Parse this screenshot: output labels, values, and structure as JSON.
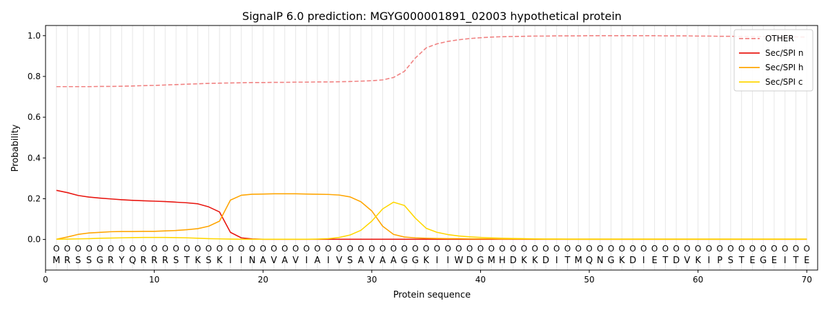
{
  "chart_data": {
    "type": "line",
    "title": "SignalP 6.0 prediction: MGYG000001891_02003 hypothetical protein",
    "xlabel": "Protein sequence",
    "ylabel": "Probability",
    "xlim": [
      0,
      71
    ],
    "ylim": [
      -0.15,
      1.05
    ],
    "x_ticks": [
      0,
      10,
      20,
      30,
      40,
      50,
      60,
      70
    ],
    "y_ticks": [
      0.0,
      0.2,
      0.4,
      0.6,
      0.8,
      1.0
    ],
    "y_tick_labels": [
      "0.0",
      "0.2",
      "0.4",
      "0.6",
      "0.8",
      "1.0"
    ],
    "grid": "vertical at each residue",
    "legend_position": "top-right",
    "sequence": [
      "M",
      "R",
      "S",
      "S",
      "G",
      "R",
      "Y",
      "Q",
      "R",
      "R",
      "R",
      "S",
      "T",
      "K",
      "S",
      "K",
      "I",
      "I",
      "N",
      "A",
      "V",
      "A",
      "V",
      "I",
      "A",
      "I",
      "V",
      "S",
      "A",
      "V",
      "A",
      "A",
      "G",
      "G",
      "K",
      "I",
      "I",
      "W",
      "D",
      "G",
      "M",
      "H",
      "D",
      "K",
      "K",
      "D",
      "I",
      "T",
      "M",
      "Q",
      "N",
      "G",
      "K",
      "D",
      "I",
      "E",
      "T",
      "D",
      "V",
      "K",
      "I",
      "P",
      "S",
      "T",
      "E",
      "G",
      "E",
      "I",
      "T",
      "E"
    ],
    "region_labels": [
      "O",
      "O",
      "O",
      "O",
      "O",
      "O",
      "O",
      "O",
      "O",
      "O",
      "O",
      "O",
      "O",
      "O",
      "O",
      "O",
      "O",
      "O",
      "O",
      "O",
      "O",
      "O",
      "O",
      "O",
      "O",
      "O",
      "O",
      "O",
      "O",
      "O",
      "O",
      "O",
      "O",
      "O",
      "O",
      "O",
      "O",
      "O",
      "O",
      "O",
      "O",
      "O",
      "O",
      "O",
      "O",
      "O",
      "O",
      "O",
      "O",
      "O",
      "O",
      "O",
      "O",
      "O",
      "O",
      "O",
      "O",
      "O",
      "O",
      "O",
      "O",
      "O",
      "O",
      "O",
      "O",
      "O",
      "O",
      "O",
      "O",
      "O"
    ],
    "series": [
      {
        "name": "OTHER",
        "color": "#f08080",
        "dashed": true,
        "values": [
          0.75,
          0.75,
          0.75,
          0.75,
          0.751,
          0.751,
          0.752,
          0.753,
          0.755,
          0.756,
          0.758,
          0.76,
          0.762,
          0.764,
          0.766,
          0.767,
          0.768,
          0.769,
          0.77,
          0.77,
          0.771,
          0.771,
          0.772,
          0.772,
          0.773,
          0.773,
          0.774,
          0.775,
          0.777,
          0.779,
          0.783,
          0.795,
          0.825,
          0.89,
          0.94,
          0.96,
          0.972,
          0.98,
          0.986,
          0.99,
          0.993,
          0.995,
          0.996,
          0.997,
          0.998,
          0.998,
          0.999,
          0.999,
          0.999,
          1.0,
          1.0,
          1.0,
          1.0,
          1.0,
          1.0,
          1.0,
          0.999,
          0.999,
          0.999,
          0.998,
          0.998,
          0.997,
          0.997,
          0.996,
          0.996,
          0.995,
          0.995,
          0.994,
          0.994,
          0.993
        ]
      },
      {
        "name": "Sec/SPI n",
        "color": "#e8150f",
        "dashed": false,
        "values": [
          0.241,
          0.23,
          0.216,
          0.208,
          0.203,
          0.199,
          0.195,
          0.192,
          0.19,
          0.188,
          0.186,
          0.183,
          0.18,
          0.175,
          0.16,
          0.135,
          0.035,
          0.008,
          0.003,
          0.001,
          0.001,
          0.001,
          0.001,
          0.001,
          0.001,
          0.001,
          0.001,
          0.001,
          0.001,
          0.001,
          0.001,
          0.001,
          0.001,
          0.001,
          0.001,
          0.001,
          0.001,
          0.001,
          0.001,
          0.001,
          0.001,
          0.001,
          0.001,
          0.001,
          0.001,
          0.001,
          0.001,
          0.001,
          0.001,
          0.001,
          0.001,
          0.001,
          0.001,
          0.001,
          0.001,
          0.001,
          0.001,
          0.001,
          0.001,
          0.001,
          0.001,
          0.001,
          0.001,
          0.001,
          0.001,
          0.001,
          0.001,
          0.001,
          0.001,
          0.001
        ]
      },
      {
        "name": "Sec/SPI h",
        "color": "#ffa500",
        "dashed": false,
        "values": [
          0.001,
          0.012,
          0.025,
          0.032,
          0.035,
          0.038,
          0.039,
          0.039,
          0.04,
          0.04,
          0.042,
          0.044,
          0.048,
          0.053,
          0.065,
          0.09,
          0.193,
          0.217,
          0.222,
          0.223,
          0.224,
          0.224,
          0.224,
          0.223,
          0.222,
          0.221,
          0.218,
          0.209,
          0.185,
          0.14,
          0.065,
          0.025,
          0.012,
          0.008,
          0.006,
          0.005,
          0.004,
          0.004,
          0.003,
          0.003,
          0.003,
          0.002,
          0.002,
          0.002,
          0.002,
          0.002,
          0.002,
          0.002,
          0.002,
          0.002,
          0.002,
          0.002,
          0.002,
          0.002,
          0.002,
          0.002,
          0.002,
          0.002,
          0.002,
          0.002,
          0.002,
          0.002,
          0.002,
          0.002,
          0.002,
          0.002,
          0.002,
          0.002,
          0.002,
          0.002
        ]
      },
      {
        "name": "Sec/SPI c",
        "color": "#ffd700",
        "dashed": false,
        "values": [
          0.001,
          0.002,
          0.003,
          0.004,
          0.006,
          0.007,
          0.008,
          0.009,
          0.01,
          0.01,
          0.01,
          0.009,
          0.008,
          0.006,
          0.004,
          0.003,
          0.002,
          0.001,
          0.001,
          0.001,
          0.001,
          0.001,
          0.001,
          0.001,
          0.002,
          0.004,
          0.01,
          0.022,
          0.045,
          0.09,
          0.15,
          0.183,
          0.167,
          0.105,
          0.055,
          0.035,
          0.024,
          0.017,
          0.013,
          0.01,
          0.008,
          0.006,
          0.005,
          0.004,
          0.003,
          0.002,
          0.002,
          0.001,
          0.001,
          0.001,
          0.001,
          0.001,
          0.001,
          0.001,
          0.001,
          0.001,
          0.001,
          0.001,
          0.001,
          0.001,
          0.001,
          0.001,
          0.001,
          0.001,
          0.001,
          0.001,
          0.001,
          0.001,
          0.001,
          0.001
        ]
      }
    ]
  }
}
